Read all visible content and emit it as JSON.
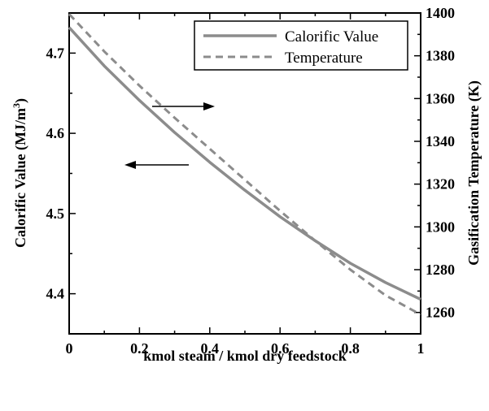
{
  "chart_data": {
    "type": "line",
    "title": "",
    "xlabel": "kmol steam / kmol dry feedstock",
    "ylabel_left": "Calorific Value (MJ/m",
    "ylabel_left_sup": "3",
    "ylabel_left_close": ")",
    "ylabel_right": "Gasification Temperature (K)",
    "xlim": [
      0,
      1
    ],
    "ylim_left": [
      4.35,
      4.75
    ],
    "ylim_right": [
      1250,
      1400
    ],
    "x_ticks": [
      0,
      0.2,
      0.4,
      0.6,
      0.8,
      1
    ],
    "x_tick_labels": [
      "0",
      "0.2",
      "0.4",
      "0.6",
      "0.8",
      "1"
    ],
    "y_left_ticks": [
      4.4,
      4.5,
      4.6,
      4.7
    ],
    "y_left_tick_labels": [
      "4.4",
      "4.5",
      "4.6",
      "4.7"
    ],
    "y_right_ticks": [
      1260,
      1280,
      1300,
      1320,
      1340,
      1360,
      1380,
      1400
    ],
    "y_right_tick_labels": [
      "1260",
      "1280",
      "1300",
      "1320",
      "1340",
      "1360",
      "1380",
      "1400"
    ],
    "legend_position": "top-right",
    "grid": false,
    "series": [
      {
        "name": "Calorific Value",
        "axis": "left",
        "style": "solid",
        "color": "#8c8c8c",
        "x": [
          0,
          0.1,
          0.2,
          0.3,
          0.4,
          0.5,
          0.6,
          0.7,
          0.8,
          0.9,
          1.0
        ],
        "y": [
          4.732,
          4.684,
          4.641,
          4.601,
          4.564,
          4.529,
          4.496,
          4.466,
          4.438,
          4.414,
          4.393
        ]
      },
      {
        "name": "Temperature",
        "axis": "right",
        "style": "dashed",
        "color": "#8c8c8c",
        "x": [
          0,
          0.1,
          0.2,
          0.3,
          0.4,
          0.5,
          0.6,
          0.7,
          0.8,
          0.9,
          1.0
        ],
        "y": [
          1399.5,
          1382,
          1366,
          1351,
          1336.5,
          1322,
          1307.5,
          1293.5,
          1280,
          1268,
          1259
        ]
      }
    ],
    "annotations": [
      {
        "type": "arrow",
        "direction": "right",
        "points_to": "right-axis"
      },
      {
        "type": "arrow",
        "direction": "left",
        "points_to": "left-axis"
      }
    ]
  }
}
